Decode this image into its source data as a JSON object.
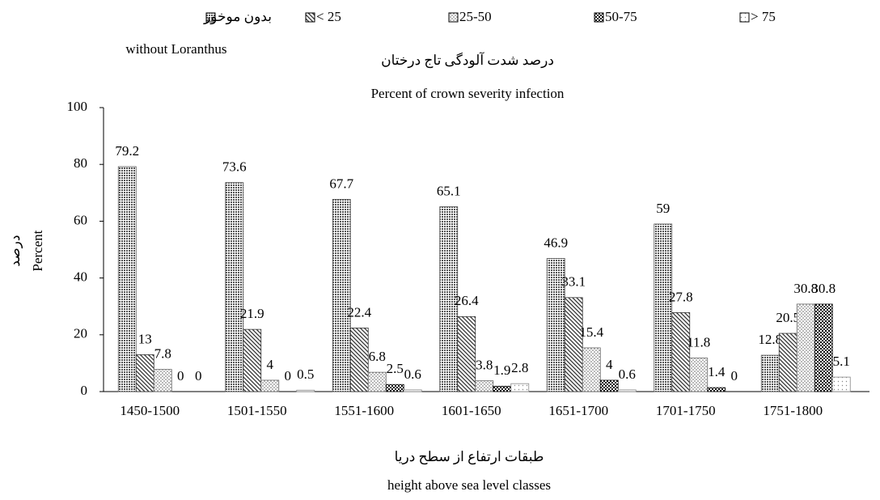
{
  "chart_data": {
    "type": "bar",
    "title": "درصد شدت آلودگی تاج درختان",
    "subtitle": "Percent of crown severity infection",
    "y_label": "درصد",
    "y_label_en": "Percent",
    "x_label": "طبقات ارتفاع از سطح دریا",
    "x_label_en": "height above sea level classes",
    "legend_note": "without Loranthus",
    "categories": [
      "1450-1500",
      "1501-1550",
      "1551-1600",
      "1601-1650",
      "1651-1700",
      "1701-1750",
      "1751-1800"
    ],
    "series": [
      {
        "name": "بدون موخور",
        "color": "#555555",
        "pattern": "dense",
        "values": [
          79.2,
          73.6,
          67.7,
          65.1,
          46.9,
          59,
          12.8
        ]
      },
      {
        "name": "< 25",
        "color": "#333333",
        "pattern": "diagonal",
        "values": [
          13,
          21.9,
          22.4,
          26.4,
          33.1,
          27.8,
          20.5
        ]
      },
      {
        "name": "25-50",
        "color": "#666666",
        "pattern": "dots",
        "values": [
          7.8,
          4,
          6.8,
          3.8,
          15.4,
          11.8,
          30.8
        ]
      },
      {
        "name": "50-75",
        "color": "#111111",
        "pattern": "checker",
        "values": [
          0,
          0,
          2.5,
          1.9,
          4,
          1.4,
          30.8
        ]
      },
      {
        "name": "> 75",
        "color": "#888888",
        "pattern": "sparse",
        "values": [
          0,
          0.5,
          0.6,
          2.8,
          0.6,
          0,
          5.1
        ]
      }
    ],
    "ylim": [
      0,
      100
    ],
    "yticks": [
      0,
      20,
      40,
      60,
      80,
      100
    ]
  }
}
